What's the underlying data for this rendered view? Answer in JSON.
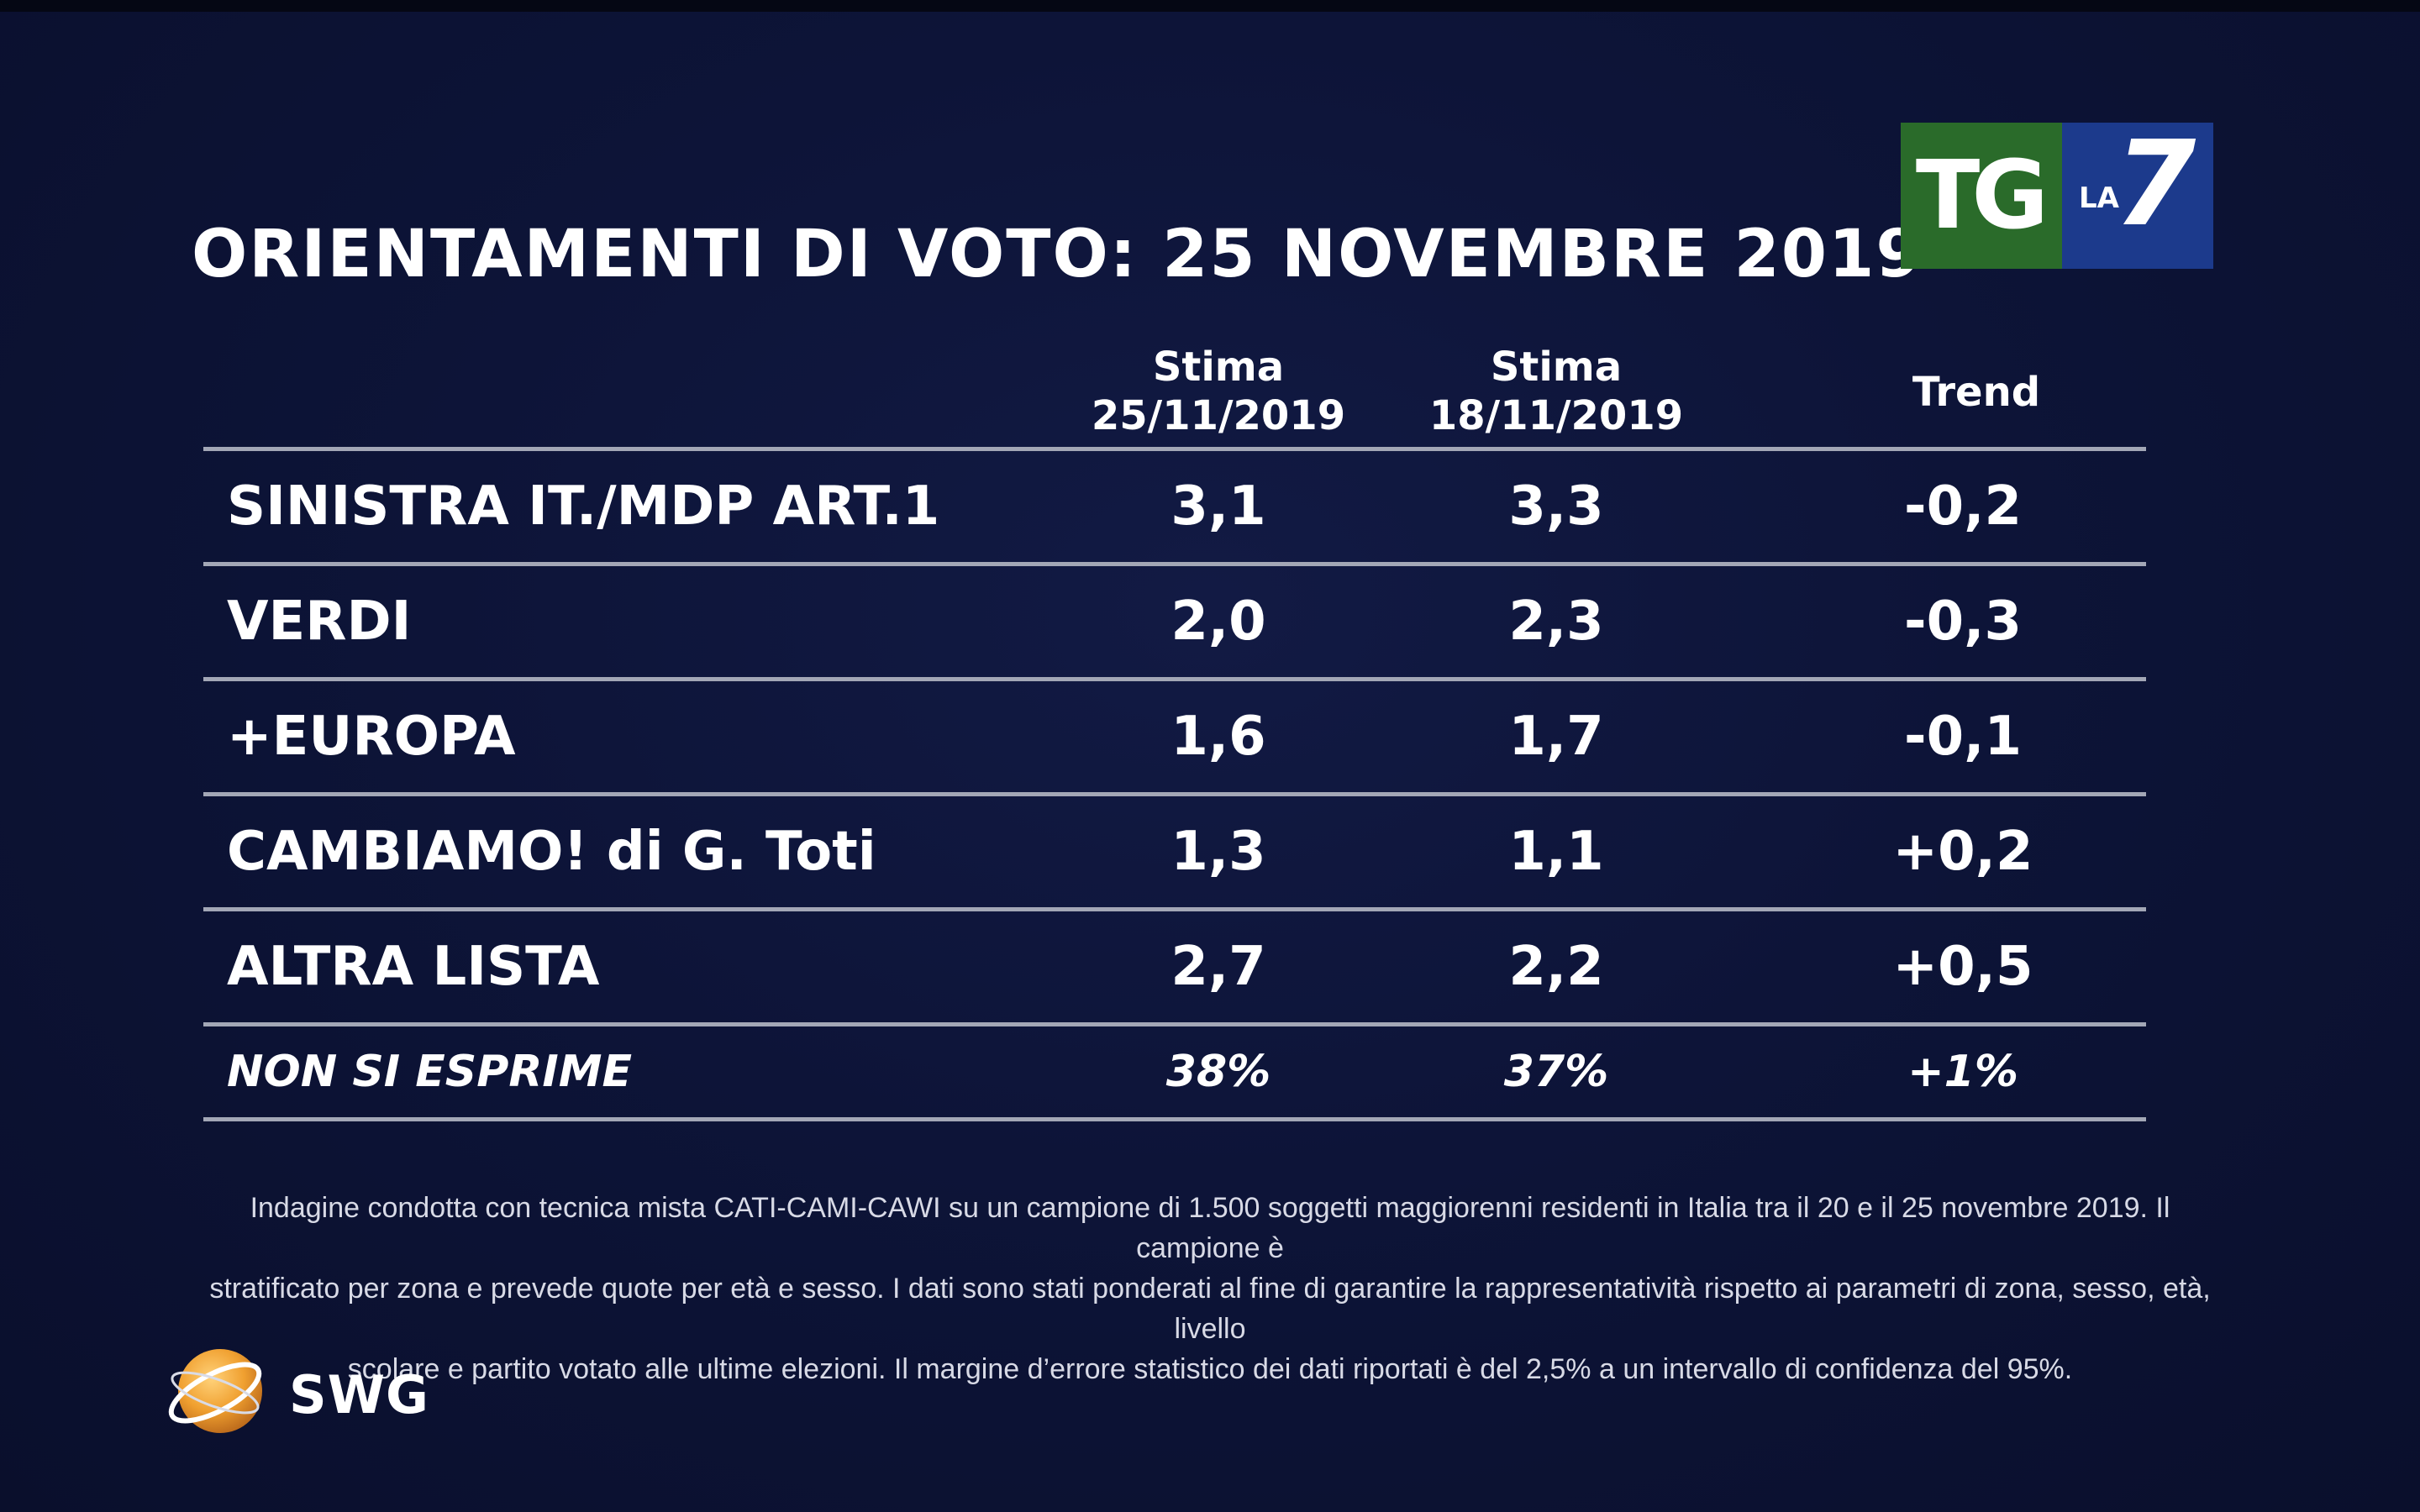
{
  "title": "ORIENTAMENTI DI VOTO: 25 NOVEMBRE 2019",
  "logo": {
    "tg": "TG",
    "la": "LA",
    "seven": "7",
    "colors": {
      "tg_bg": "#2a6b2a",
      "la7_bg": "#1c3a8c"
    }
  },
  "table": {
    "headers": [
      {
        "line1": "Stima",
        "line2": "25/11/2019"
      },
      {
        "line1": "Stima",
        "line2": "18/11/2019"
      },
      {
        "line1": "Trend",
        "line2": ""
      }
    ],
    "rows": [
      {
        "party": "SINISTRA IT./MDP ART.1",
        "est_25_11": "3,1",
        "est_18_11": "3,3",
        "trend": "-0,2"
      },
      {
        "party": "VERDI",
        "est_25_11": "2,0",
        "est_18_11": "2,3",
        "trend": "-0,3"
      },
      {
        "party": "+EUROPA",
        "est_25_11": "1,6",
        "est_18_11": "1,7",
        "trend": "-0,1"
      },
      {
        "party": "CAMBIAMO! di G. Toti",
        "est_25_11": "1,3",
        "est_18_11": "1,1",
        "trend": "+0,2"
      },
      {
        "party": "ALTRA LISTA",
        "est_25_11": "2,7",
        "est_18_11": "2,2",
        "trend": "+0,5"
      }
    ],
    "no_answer": {
      "party": "NON SI ESPRIME",
      "est_25_11": "38%",
      "est_18_11": "37%",
      "trend": "+1%"
    }
  },
  "footnote": {
    "line1": "Indagine condotta con tecnica mista CATI-CAMI-CAWI su un campione di 1.500 soggetti maggiorenni residenti in Italia tra il 20 e il 25 novembre 2019. Il campione è",
    "line2": "stratificato per zona e prevede quote per età e sesso. I dati sono stati ponderati al fine di garantire la rappresentatività rispetto ai parametri di zona, sesso, età, livello",
    "line3": "scolare e partito votato alle ultime elezioni. Il margine d’errore statistico dei dati riportati è del 2,5% a un intervallo di confidenza del 95%."
  },
  "brand": {
    "name": "SWG",
    "icon": "swg-globe-icon",
    "color": "#f0a030"
  },
  "colors": {
    "background": "#0d1438",
    "rule": "#a3a7b6",
    "text": "#ffffff"
  }
}
